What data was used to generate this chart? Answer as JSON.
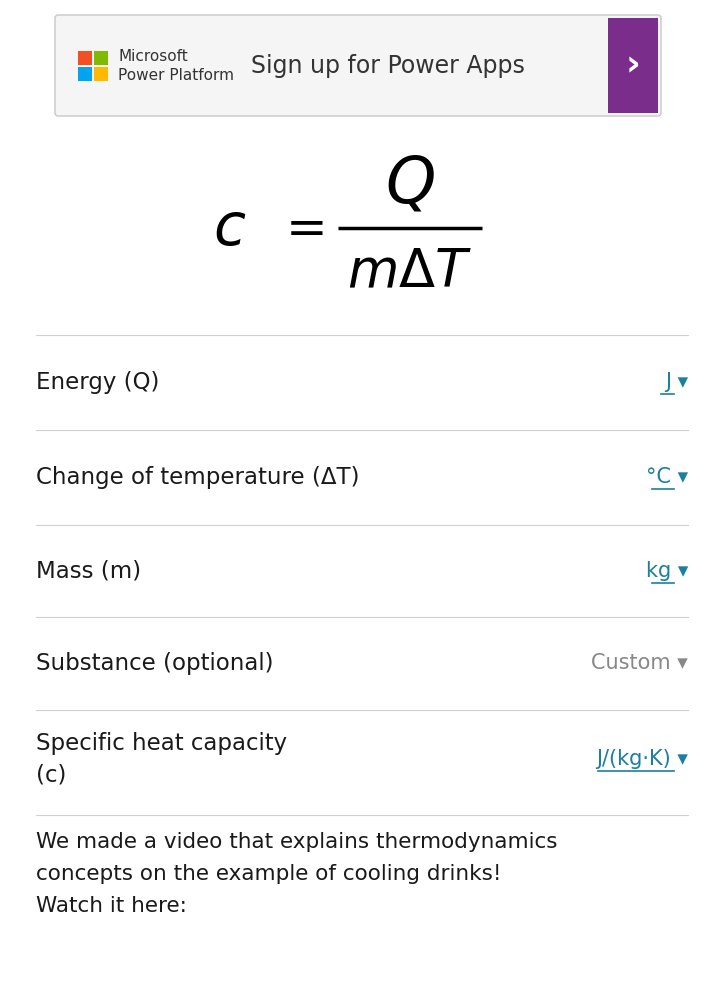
{
  "bg_color": "#ffffff",
  "banner": {
    "rect_color": "#f5f5f5",
    "border_color": "#c8c8c8",
    "ms_text1": "Microsoft",
    "ms_text2": "Power Platform",
    "sign_text": "Sign up for Power Apps",
    "arrow_bg": "#7b2d8b",
    "arrow_char": "›",
    "ms_colors": [
      "#f25022",
      "#7fba00",
      "#00a4ef",
      "#ffb900"
    ]
  },
  "rows": [
    {
      "label": "Energy (Q)",
      "unit": "J ▾",
      "unit_color": "#1a7fa0",
      "underline": true,
      "two_line": false
    },
    {
      "label": "Change of temperature (ΔT)",
      "unit": "°C ▾",
      "unit_color": "#1a7fa0",
      "underline": true,
      "two_line": false
    },
    {
      "label": "Mass (m)",
      "unit": "kg ▾",
      "unit_color": "#1a7fa0",
      "underline": true,
      "two_line": false
    },
    {
      "label": "Substance (optional)",
      "unit": "Custom ▾",
      "unit_color": "#888888",
      "underline": false,
      "two_line": false
    },
    {
      "label": "Specific heat capacity",
      "label2": "(c)",
      "unit": "J/(kg·K) ▾",
      "unit_color": "#1a7fa0",
      "underline": true,
      "two_line": true
    }
  ],
  "divider_color": "#d0d0d0",
  "footer_text": "We made a video that explains thermodynamics\nconcepts on the example of cooling drinks!\nWatch it here:",
  "label_fontsize": 16.5,
  "unit_fontsize": 15,
  "footer_fontsize": 15.5
}
